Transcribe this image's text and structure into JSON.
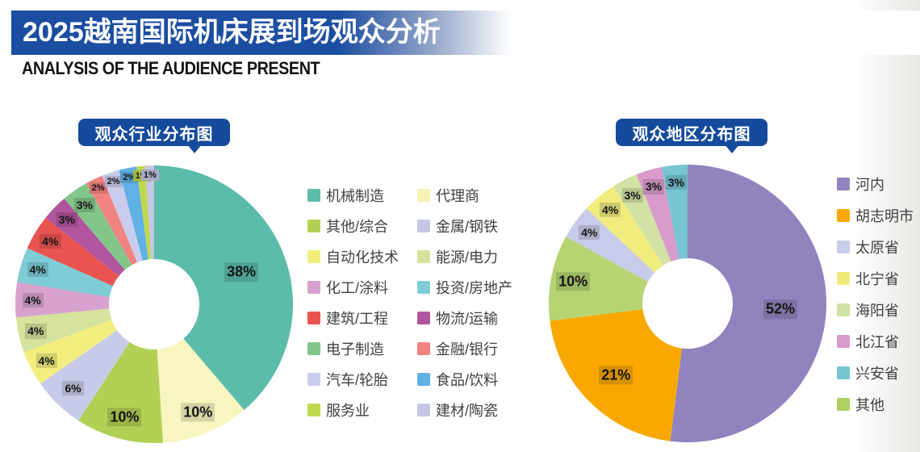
{
  "header": {
    "title": "2025越南国际机床展到场观众分析",
    "subtitle": "ANALYSIS OF THE AUDIENCE PRESENT"
  },
  "colors": {
    "banner_blue": "#1B4DA1",
    "bubble_blue": "#164A9C",
    "right_fade_gray": "#E7E7E4",
    "label_text": "#141414"
  },
  "chart_data": [
    {
      "type": "pie",
      "donut": true,
      "title": "观众行业分布图",
      "unit": "%",
      "label_format": "percent",
      "legend_position": "right",
      "slices": [
        {
          "label": "机械制造",
          "value": 38,
          "color": "#5CBCAB"
        },
        {
          "label": "代理商",
          "value": 10,
          "color": "#F8F5C0"
        },
        {
          "label": "其他/综合",
          "value": 10,
          "color": "#B3D054"
        },
        {
          "label": "金属/钢铁",
          "value": 6,
          "color": "#C8CAEA"
        },
        {
          "label": "自动化技术",
          "value": 4,
          "color": "#F2EE7E"
        },
        {
          "label": "能源/电力",
          "value": 4,
          "color": "#D6E39D"
        },
        {
          "label": "化工/涂料",
          "value": 4,
          "color": "#D8A2CF"
        },
        {
          "label": "投资/房地产",
          "value": 4,
          "color": "#7ECCD6"
        },
        {
          "label": "建筑/工程",
          "value": 4,
          "color": "#E95450"
        },
        {
          "label": "物流/运输",
          "value": 3,
          "color": "#B1559E"
        },
        {
          "label": "电子制造",
          "value": 3,
          "color": "#83C68C"
        },
        {
          "label": "金融/银行",
          "value": 2,
          "color": "#F18381"
        },
        {
          "label": "汽车/轮胎",
          "value": 2,
          "color": "#CACCEC"
        },
        {
          "label": "食品/饮料",
          "value": 2,
          "color": "#60B1E5"
        },
        {
          "label": "服务业",
          "value": 1,
          "color": "#BFD84E"
        },
        {
          "label": "建材/陶瓷",
          "value": 1,
          "color": "#C6C6E6"
        }
      ],
      "legend_columns": [
        [
          {
            "label": "机械制造",
            "color": "#5CBCAB"
          },
          {
            "label": "其他/综合",
            "color": "#B3D054"
          },
          {
            "label": "自动化技术",
            "color": "#F2EE7E"
          },
          {
            "label": "化工/涂料",
            "color": "#D8A2CF"
          },
          {
            "label": "建筑/工程",
            "color": "#E95450"
          },
          {
            "label": "电子制造",
            "color": "#83C68C"
          },
          {
            "label": "汽车/轮胎",
            "color": "#CACCEC"
          },
          {
            "label": "服务业",
            "color": "#BFD84E"
          }
        ],
        [
          {
            "label": "代理商",
            "color": "#F6F2B8"
          },
          {
            "label": "金属/钢铁",
            "color": "#C6C7E6"
          },
          {
            "label": "能源/电力",
            "color": "#D6E39D"
          },
          {
            "label": "投资/房地产",
            "color": "#7ECCD6"
          },
          {
            "label": "物流/运输",
            "color": "#B1559E"
          },
          {
            "label": "金融/银行",
            "color": "#F18381"
          },
          {
            "label": "食品/饮料",
            "color": "#60B1E5"
          },
          {
            "label": "建材/陶瓷",
            "color": "#C6C6E6"
          }
        ]
      ]
    },
    {
      "type": "pie",
      "donut": true,
      "title": "观众地区分布图",
      "unit": "%",
      "label_format": "percent",
      "legend_position": "right",
      "slices": [
        {
          "label": "河内",
          "value": 52,
          "color": "#9184BE"
        },
        {
          "label": "胡志明市",
          "value": 21,
          "color": "#F8A801"
        },
        {
          "label": "其他",
          "value": 10,
          "color": "#B6D472"
        },
        {
          "label": "太原省",
          "value": 4,
          "color": "#C9CBEA"
        },
        {
          "label": "北宁省",
          "value": 4,
          "color": "#F0EC7E"
        },
        {
          "label": "海阳省",
          "value": 3,
          "color": "#D2E2A4"
        },
        {
          "label": "北江省",
          "value": 3,
          "color": "#D89BCB"
        },
        {
          "label": "兴安省",
          "value": 3,
          "color": "#76C5D2"
        }
      ],
      "legend_columns": [
        [
          {
            "label": "河内",
            "color": "#9184BE"
          },
          {
            "label": "胡志明市",
            "color": "#F8A801"
          },
          {
            "label": "太原省",
            "color": "#C9CBEA"
          },
          {
            "label": "北宁省",
            "color": "#EFEA7C"
          },
          {
            "label": "海阳省",
            "color": "#D2E2A4"
          },
          {
            "label": "北江省",
            "color": "#D89BCB"
          },
          {
            "label": "兴安省",
            "color": "#76C5D2"
          },
          {
            "label": "其他",
            "color": "#B1CF62"
          }
        ]
      ]
    }
  ]
}
